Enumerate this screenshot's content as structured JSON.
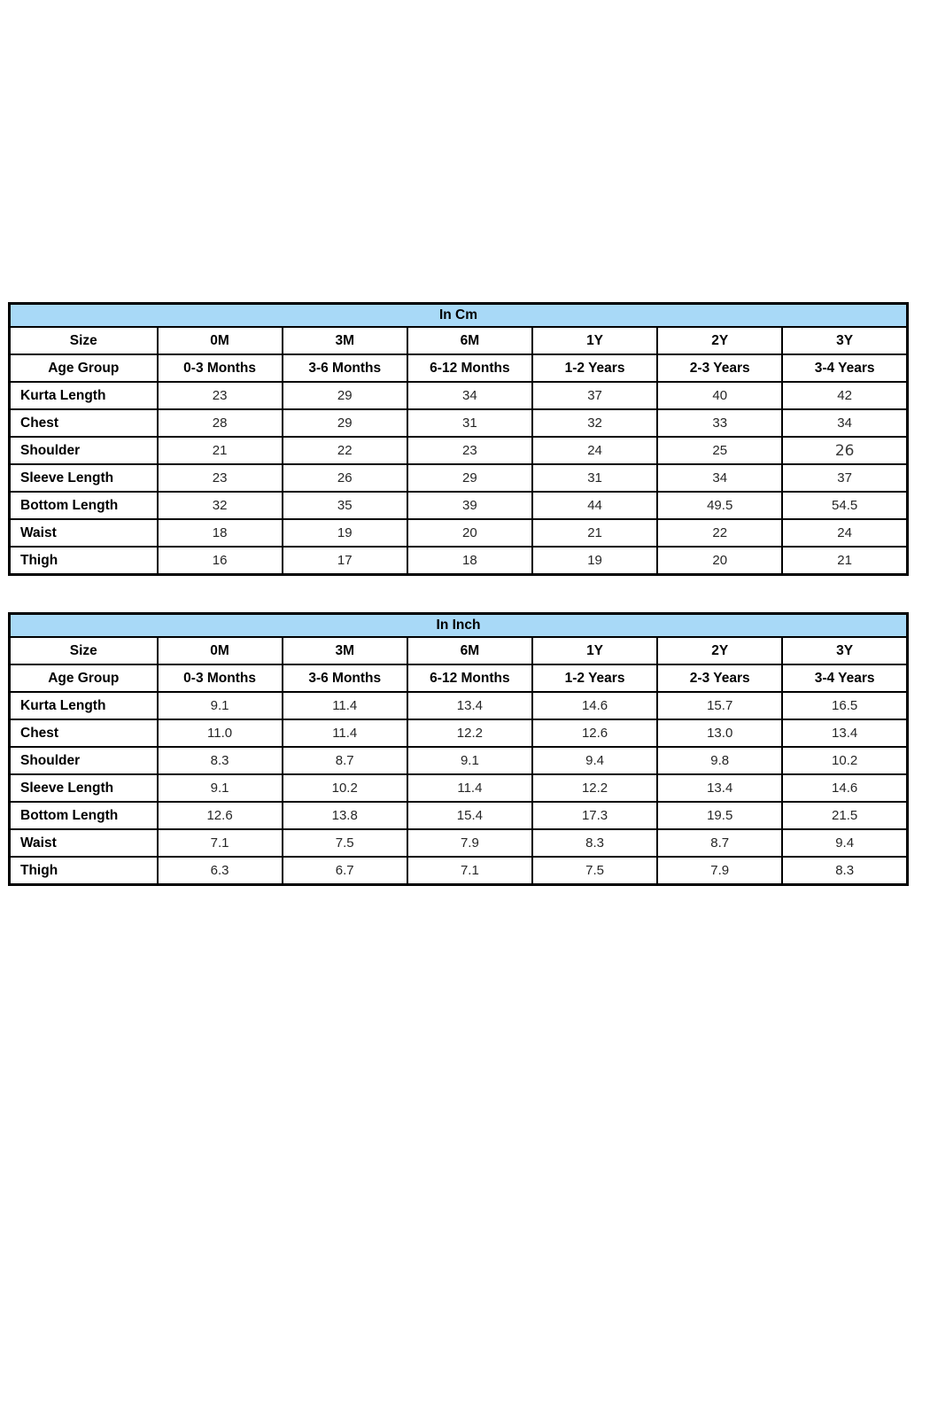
{
  "styles": {
    "header_fill": "#A8D9F7",
    "border_color": "#000000",
    "number_color": "#262626"
  },
  "tables": [
    {
      "id": "cm",
      "title": "In Cm",
      "size_label": "Size",
      "age_label": "Age Group",
      "sizes": [
        "0M",
        "3M",
        "6M",
        "1Y",
        "2Y",
        "3Y"
      ],
      "age_groups": [
        "0-3 Months",
        "3-6 Months",
        "6-12 Months",
        "1-2 Years",
        "2-3 Years",
        "3-4 Years"
      ],
      "rows": [
        {
          "label": "Kurta Length",
          "values": [
            "23",
            "29",
            "34",
            "37",
            "40",
            "42"
          ]
        },
        {
          "label": "Chest",
          "values": [
            "28",
            "29",
            "31",
            "32",
            "33",
            "34"
          ]
        },
        {
          "label": "Shoulder",
          "values": [
            "21",
            "22",
            "23",
            "24",
            "25",
            "26"
          ]
        },
        {
          "label": "Sleeve Length",
          "values": [
            "23",
            "26",
            "29",
            "31",
            "34",
            "37"
          ]
        },
        {
          "label": "Bottom Length",
          "values": [
            "32",
            "35",
            "39",
            "44",
            "49.5",
            "54.5"
          ]
        },
        {
          "label": "Waist",
          "values": [
            "18",
            "19",
            "20",
            "21",
            "22",
            "24"
          ]
        },
        {
          "label": "Thigh",
          "values": [
            "16",
            "17",
            "18",
            "19",
            "20",
            "21"
          ]
        }
      ],
      "odd_font_cell": {
        "row": 2,
        "col": 5
      }
    },
    {
      "id": "inch",
      "title": "In Inch",
      "size_label": "Size",
      "age_label": "Age Group",
      "sizes": [
        "0M",
        "3M",
        "6M",
        "1Y",
        "2Y",
        "3Y"
      ],
      "age_groups": [
        "0-3 Months",
        "3-6 Months",
        "6-12 Months",
        "1-2 Years",
        "2-3 Years",
        "3-4 Years"
      ],
      "rows": [
        {
          "label": "Kurta Length",
          "values": [
            "9.1",
            "11.4",
            "13.4",
            "14.6",
            "15.7",
            "16.5"
          ]
        },
        {
          "label": "Chest",
          "values": [
            "11.0",
            "11.4",
            "12.2",
            "12.6",
            "13.0",
            "13.4"
          ]
        },
        {
          "label": "Shoulder",
          "values": [
            "8.3",
            "8.7",
            "9.1",
            "9.4",
            "9.8",
            "10.2"
          ]
        },
        {
          "label": "Sleeve Length",
          "values": [
            "9.1",
            "10.2",
            "11.4",
            "12.2",
            "13.4",
            "14.6"
          ]
        },
        {
          "label": "Bottom Length",
          "values": [
            "12.6",
            "13.8",
            "15.4",
            "17.3",
            "19.5",
            "21.5"
          ]
        },
        {
          "label": "Waist",
          "values": [
            "7.1",
            "7.5",
            "7.9",
            "8.3",
            "8.7",
            "9.4"
          ]
        },
        {
          "label": "Thigh",
          "values": [
            "6.3",
            "6.7",
            "7.1",
            "7.5",
            "7.9",
            "8.3"
          ]
        }
      ]
    }
  ]
}
